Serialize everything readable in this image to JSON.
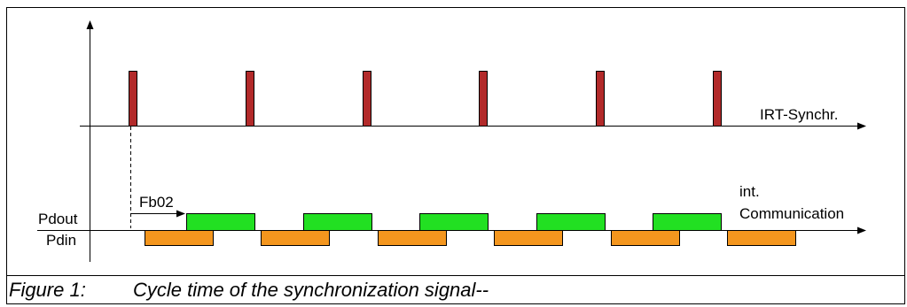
{
  "diagram": {
    "labels": {
      "irt": "IRT-Synchr.",
      "pdout": "Pdout",
      "pdin": "Pdin",
      "fb02": "Fb02",
      "int_comm_line1": "int.",
      "int_comm_line2": "Communication"
    },
    "sync_pulse_count": 6,
    "pdout_block_count": 5,
    "pdin_block_count": 6,
    "colors": {
      "sync_pulse": "#b22a2a",
      "pdout": "#22e022",
      "pdin": "#f4961e",
      "frame": "#000000"
    }
  },
  "caption": {
    "number": "Figure 1:",
    "text": "Cycle time of the synchronization signal--"
  }
}
